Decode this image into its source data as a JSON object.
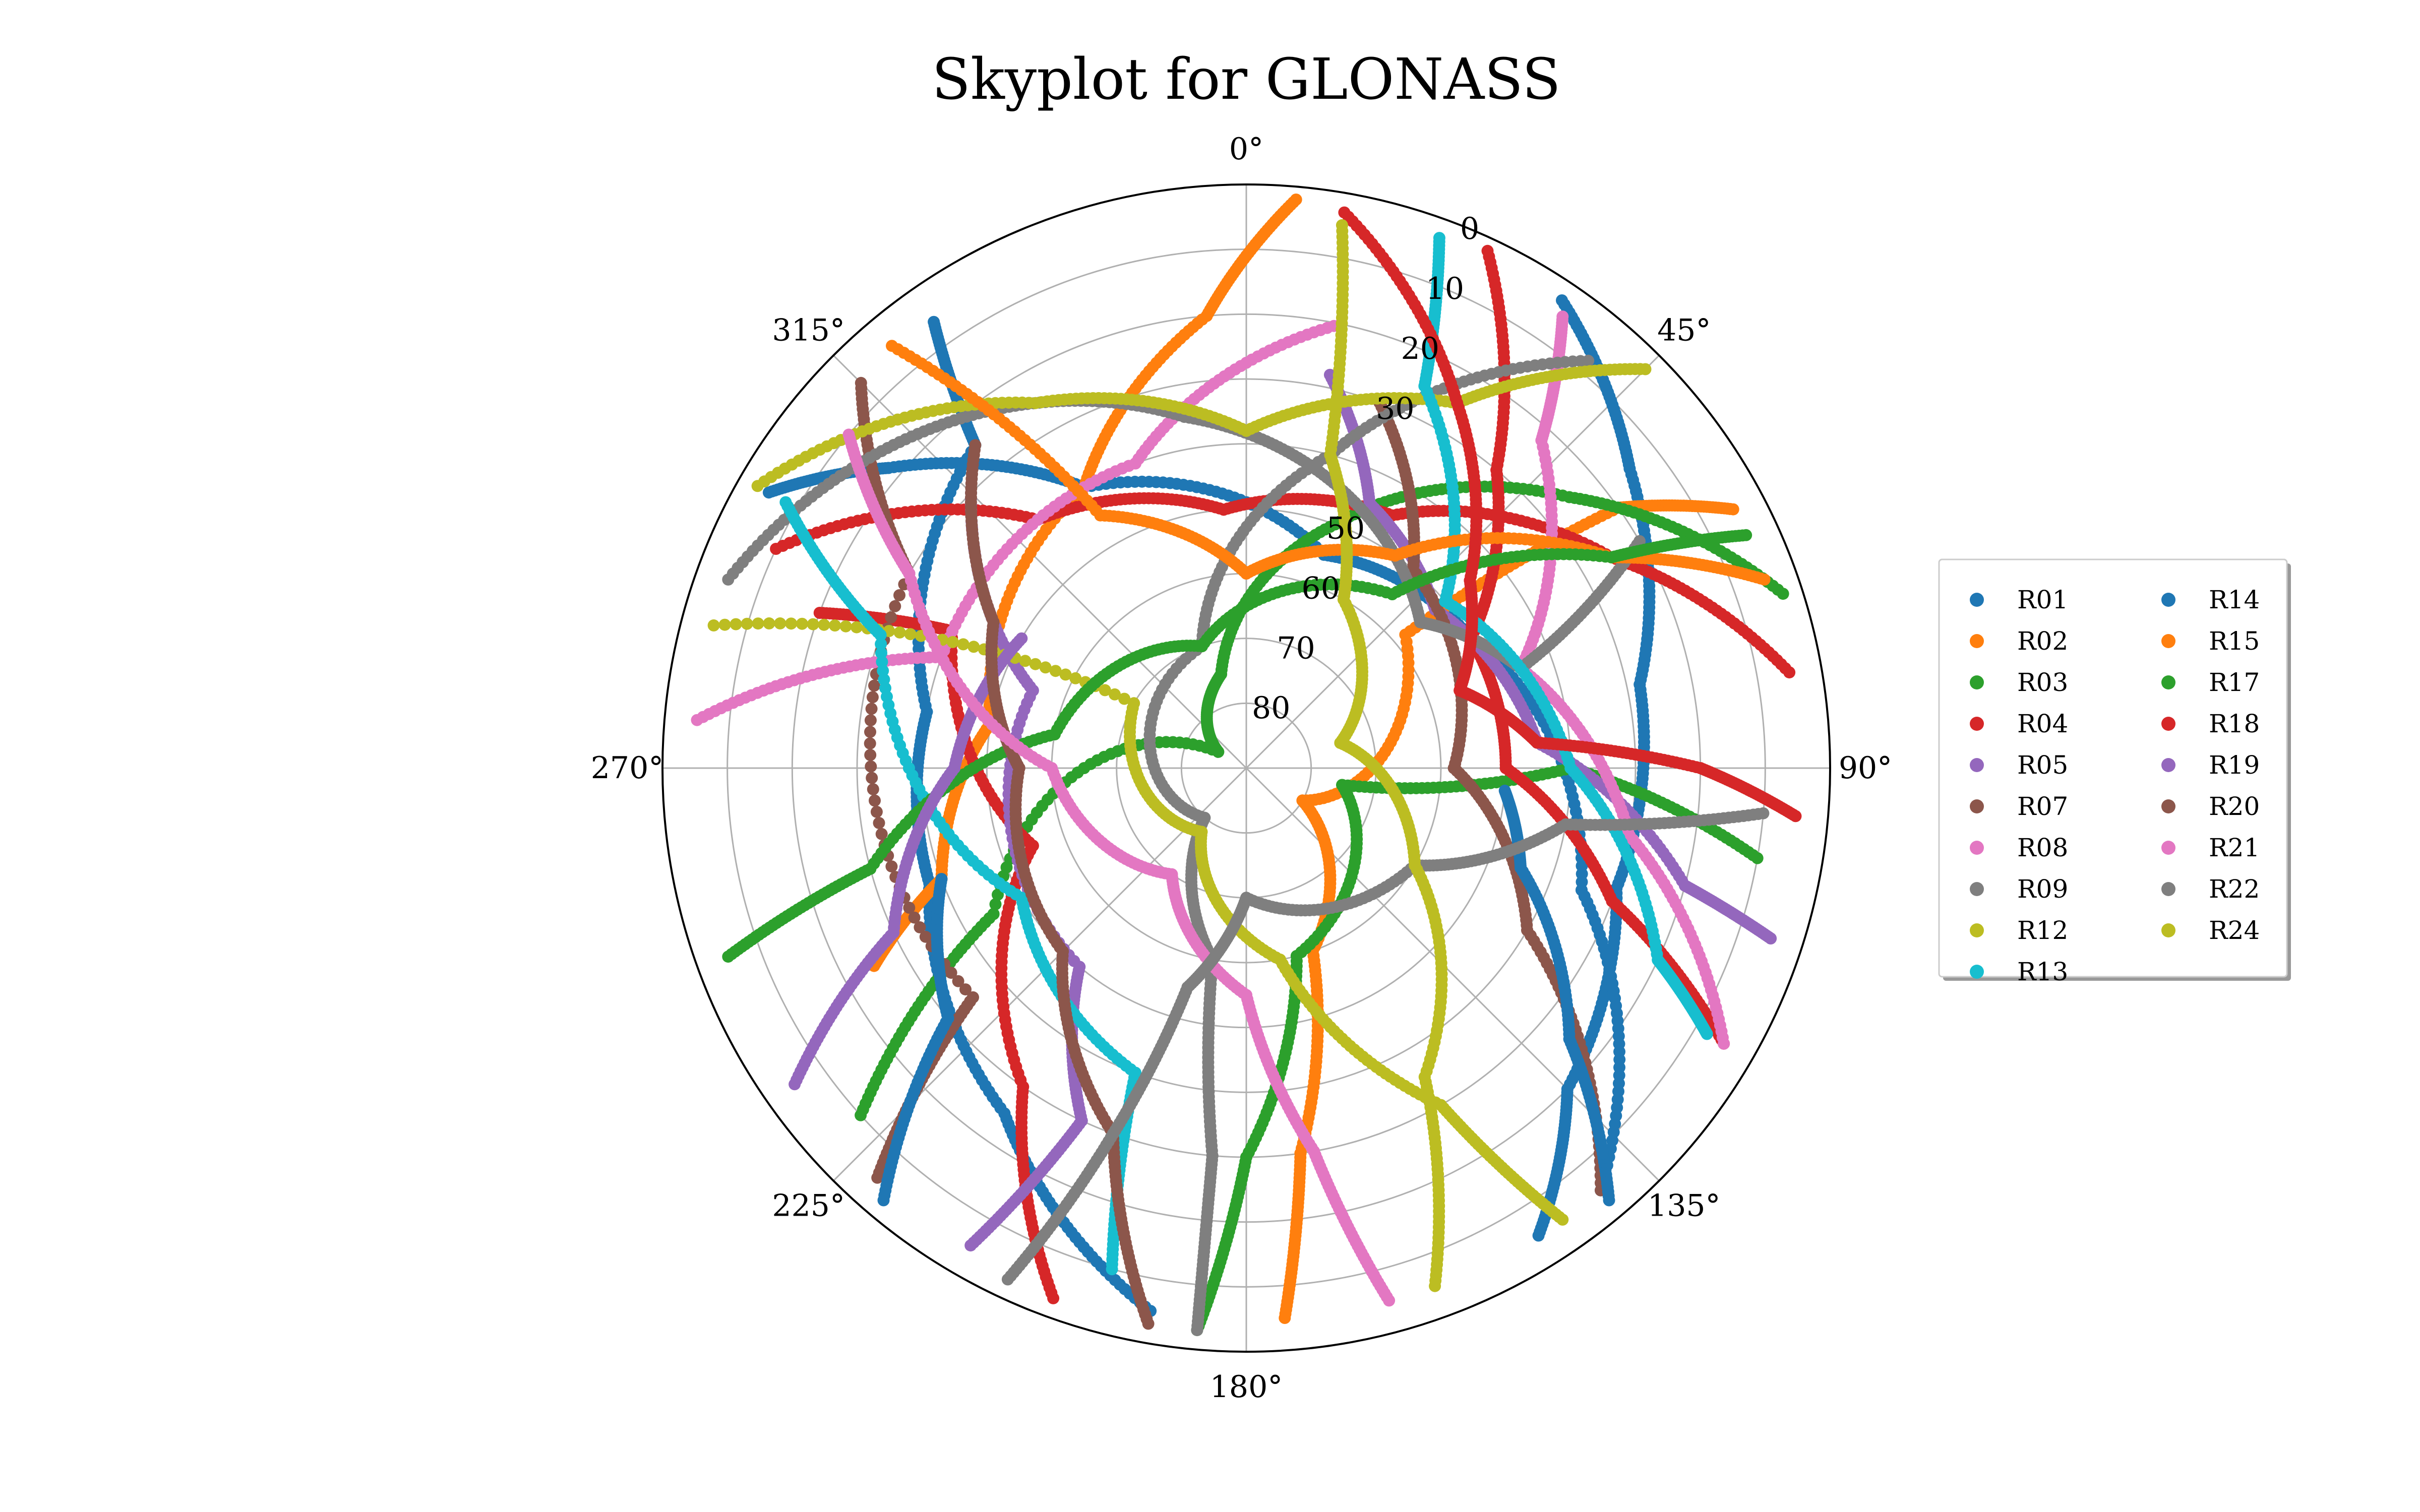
{
  "chart_data": {
    "type": "scatter",
    "projection": "polar-skyplot",
    "title": "Skyplot for GLONASS",
    "azimuth_ticks": [
      "0°",
      "45°",
      "90°",
      "135°",
      "180°",
      "225°",
      "270°",
      "315°"
    ],
    "elevation_ticks": [
      "0",
      "10",
      "20",
      "30",
      "50",
      "60",
      "70",
      "80"
    ],
    "elevation_range": [
      0,
      90
    ],
    "theta_direction": "clockwise",
    "theta_zero": "north",
    "grid": true,
    "legend": {
      "placement": "right",
      "columns": 2
    },
    "colors": {
      "blue": "#1f77b4",
      "orange": "#ff7f0e",
      "green": "#2ca02c",
      "red": "#d62728",
      "purple": "#9467bd",
      "brown": "#8c564b",
      "pink": "#e377c2",
      "gray": "#7f7f7f",
      "olive": "#bcbd22",
      "cyan": "#17becf"
    },
    "series": [
      {
        "name": "R01",
        "color": "#1f77b4",
        "tracks": [
          [
            [
              34,
              3
            ],
            [
              52,
              15
            ],
            [
              78,
              28
            ],
            [
              108,
              30
            ],
            [
              135,
              20
            ],
            [
              148,
              5
            ]
          ],
          [
            [
              300,
              5
            ],
            [
              310,
              18
            ],
            [
              330,
              40
            ],
            [
              20,
              55
            ],
            [
              60,
              50
            ],
            [
              110,
              35
            ],
            [
              140,
              5
            ]
          ],
          [
            [
              190,
              5
            ],
            [
              215,
              25
            ],
            [
              250,
              38
            ],
            [
              280,
              40
            ],
            [
              320,
              25
            ],
            [
              325,
              6
            ]
          ]
        ]
      },
      {
        "name": "R02",
        "color": "#ff7f0e",
        "tracks": [
          [
            [
              176,
              5
            ],
            [
              172,
              30
            ],
            [
              160,
              60
            ],
            [
              120,
              80
            ],
            [
              50,
              58
            ],
            [
              55,
              20
            ],
            [
              62,
              5
            ]
          ],
          [
            [
              5,
              2
            ],
            [
              355,
              20
            ],
            [
              330,
              40
            ],
            [
              280,
              50
            ],
            [
              250,
              40
            ],
            [
              242,
              25
            ]
          ]
        ]
      },
      {
        "name": "R03",
        "color": "#2ca02c",
        "tracks": [
          [
            [
              72,
              3
            ],
            [
              50,
              25
            ],
            [
              20,
              50
            ],
            [
              345,
              75
            ],
            [
              300,
              85
            ],
            [
              240,
              45
            ],
            [
              228,
              10
            ]
          ],
          [
            [
              185,
              3
            ],
            [
              180,
              30
            ],
            [
              165,
              60
            ],
            [
              100,
              75
            ],
            [
              90,
              40
            ],
            [
              100,
              10
            ]
          ]
        ]
      },
      {
        "name": "R04",
        "color": "#d62728",
        "tracks": [
          [
            [
              120,
              5
            ],
            [
              110,
              30
            ],
            [
              90,
              50
            ],
            [
              60,
              50
            ],
            [
              40,
              30
            ],
            [
              25,
              2
            ]
          ],
          [
            [
              200,
              3
            ],
            [
              215,
              30
            ],
            [
              250,
              55
            ],
            [
              295,
              40
            ],
            [
              290,
              20
            ]
          ],
          [
            [
              80,
              5
            ],
            [
              60,
              25
            ],
            [
              30,
              45
            ],
            [
              355,
              50
            ],
            [
              320,
              40
            ],
            [
              295,
              10
            ]
          ]
        ]
      },
      {
        "name": "R05",
        "color": "#9467bd",
        "tracks": [
          [
            [
              12,
              28
            ],
            [
              25,
              45
            ],
            [
              50,
              52
            ],
            [
              85,
              45
            ],
            [
              105,
              20
            ],
            [
              108,
              5
            ]
          ],
          [
            [
              210,
              5
            ],
            [
              205,
              30
            ],
            [
              220,
              50
            ],
            [
              290,
              55
            ],
            [
              315,
              30
            ]
          ]
        ]
      },
      {
        "name": "R07",
        "color": "#8c564b",
        "tracks": [
          [
            [
              20,
              30
            ],
            [
              40,
              50
            ],
            [
              90,
              58
            ],
            [
              120,
              40
            ],
            [
              140,
              5
            ]
          ],
          [
            [
              315,
              6
            ],
            [
              300,
              30
            ],
            [
              230,
              35
            ],
            [
              222,
              5
            ]
          ]
        ]
      },
      {
        "name": "R08",
        "color": "#e377c2",
        "tracks": [
          [
            [
              12,
              20
            ],
            [
              340,
              40
            ],
            [
              290,
              40
            ],
            [
              275,
              5
            ]
          ],
          [
            [
              120,
              5
            ],
            [
              100,
              30
            ],
            [
              70,
              45
            ],
            [
              42,
              22
            ],
            [
              35,
              5
            ]
          ]
        ]
      },
      {
        "name": "R09",
        "color": "#7f7f7f",
        "tracks": [
          [
            [
              185,
              3
            ],
            [
              185,
              30
            ],
            [
              190,
              60
            ],
            [
              220,
              80
            ],
            [
              340,
              70
            ],
            [
              15,
              40
            ],
            [
              40,
              8
            ]
          ],
          [
            [
              290,
              5
            ],
            [
              320,
              20
            ],
            [
              350,
              35
            ],
            [
              20,
              45
            ],
            [
              50,
              55
            ],
            [
              70,
              45
            ],
            [
              60,
              20
            ]
          ]
        ]
      },
      {
        "name": "R12",
        "color": "#bcbd22",
        "tracks": [
          [
            [
              300,
              3
            ],
            [
              330,
              25
            ],
            [
              0,
              38
            ],
            [
              30,
              25
            ],
            [
              45,
              3
            ]
          ],
          [
            [
              145,
              5
            ],
            [
              150,
              30
            ],
            [
              170,
              60
            ],
            [
              215,
              78
            ],
            [
              300,
              70
            ],
            [
              285,
              5
            ]
          ]
        ]
      },
      {
        "name": "R13",
        "color": "#17becf",
        "tracks": [
          [
            [
              20,
              3
            ],
            [
              25,
              25
            ],
            [
              50,
              50
            ],
            [
              90,
              40
            ],
            [
              115,
              20
            ],
            [
              120,
              8
            ]
          ],
          [
            [
              300,
              8
            ],
            [
              290,
              30
            ],
            [
              240,
              50
            ],
            [
              200,
              40
            ],
            [
              195,
              10
            ]
          ]
        ]
      },
      {
        "name": "R14",
        "color": "#1f77b4",
        "tracks": [
          [
            [
              140,
              3
            ],
            [
              130,
              25
            ],
            [
              110,
              45
            ],
            [
              95,
              50
            ]
          ],
          [
            [
              220,
              3
            ],
            [
              230,
              30
            ],
            [
              250,
              40
            ]
          ]
        ]
      },
      {
        "name": "R15",
        "color": "#ff7f0e",
        "tracks": [
          [
            [
              70,
              5
            ],
            [
              60,
              25
            ],
            [
              35,
              50
            ],
            [
              0,
              60
            ],
            [
              330,
              45
            ],
            [
              320,
              5
            ]
          ]
        ]
      },
      {
        "name": "R17",
        "color": "#2ca02c",
        "tracks": [
          [
            [
              250,
              5
            ],
            [
              255,
              30
            ],
            [
              280,
              60
            ],
            [
              340,
              70
            ],
            [
              40,
              55
            ],
            [
              60,
              25
            ],
            [
              65,
              5
            ]
          ]
        ]
      },
      {
        "name": "R18",
        "color": "#d62728",
        "tracks": [
          [
            [
              10,
              3
            ],
            [
              30,
              25
            ],
            [
              50,
              45
            ],
            [
              70,
              55
            ],
            [
              85,
              45
            ],
            [
              90,
              20
            ],
            [
              95,
              5
            ]
          ]
        ]
      },
      {
        "name": "R19",
        "color": "#9467bd",
        "tracks": [
          [
            [
              235,
              5
            ],
            [
              245,
              30
            ],
            [
              270,
              45
            ],
            [
              300,
              50
            ]
          ]
        ]
      },
      {
        "name": "R20",
        "color": "#8c564b",
        "tracks": [
          [
            [
              190,
              3
            ],
            [
              200,
              30
            ],
            [
              225,
              50
            ],
            [
              270,
              55
            ],
            [
              300,
              45
            ],
            [
              320,
              25
            ]
          ]
        ]
      },
      {
        "name": "R21",
        "color": "#e377c2",
        "tracks": [
          [
            [
              165,
              5
            ],
            [
              170,
              30
            ],
            [
              180,
              55
            ],
            [
              215,
              70
            ],
            [
              270,
              60
            ],
            [
              300,
              30
            ],
            [
              310,
              10
            ]
          ]
        ]
      },
      {
        "name": "R22",
        "color": "#7f7f7f",
        "tracks": [
          [
            [
              205,
              3
            ],
            [
              200,
              30
            ],
            [
              195,
              55
            ],
            [
              180,
              70
            ],
            [
              120,
              60
            ],
            [
              100,
              40
            ],
            [
              95,
              10
            ]
          ]
        ]
      },
      {
        "name": "R24",
        "color": "#bcbd22",
        "tracks": [
          [
            [
              160,
              5
            ],
            [
              150,
              35
            ],
            [
              120,
              60
            ],
            [
              75,
              75
            ],
            [
              30,
              60
            ],
            [
              15,
              40
            ],
            [
              10,
              5
            ]
          ]
        ]
      }
    ]
  }
}
